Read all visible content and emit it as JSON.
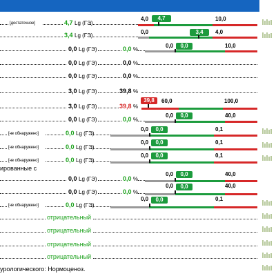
{
  "rows": [
    {
      "tag": "[достаточное]",
      "value": "4,7",
      "unit": "Lg (ГЭ)",
      "value_color": "#1aa01a",
      "scale": {
        "left": "4,0",
        "right": "10,0",
        "value_label": "4,7",
        "value_color": "green",
        "left_color": "#d62828",
        "right_color": "#1c9b3d",
        "mid_color": "#1c9b3d"
      },
      "hist": true
    },
    {
      "value": "3,4",
      "unit": "Lg (ГЭ)",
      "value_color": "#1aa01a",
      "scale": {
        "left": "0,0",
        "right": "4,0",
        "value_label": "3,4",
        "value_color": "green",
        "left_color": "#999999",
        "right_color": "#d62828",
        "mid_color": "#1c9b3d"
      },
      "hist": true
    },
    {
      "value": "0,0",
      "unit": "Lg (ГЭ)",
      "pct": "0,0",
      "pct_color": "#1aa01a",
      "scale": {
        "left": "0,0",
        "right": "10,0",
        "value_label": "0,0",
        "value_color": "green",
        "left_color": "#999999",
        "right_color": "#d62828",
        "mid_color": "#1c9b3d"
      }
    },
    {
      "value": "0,0",
      "unit": "Lg (ГЭ)",
      "pct": "0,0",
      "pct_color": "#000000"
    },
    {
      "value": "0,0",
      "unit": "Lg (ГЭ)",
      "pct": "0,0",
      "pct_color": "#000000"
    },
    {
      "value": "3,0",
      "unit": "Lg (ГЭ)",
      "pct": "39,8",
      "pct_color": "#000000"
    },
    {
      "value": "3,0",
      "unit": "Lg (ГЭ)",
      "pct": "39,8",
      "pct_color": "#d62828",
      "scale": {
        "left": "60,0",
        "right": "100,0",
        "value_label": "39,8",
        "value_color": "red",
        "left_color": "#d62828",
        "right_color": "#d62828",
        "mid_color": "#1c9b3d"
      }
    },
    {
      "value": "0,0",
      "unit": "Lg (ГЭ)",
      "pct": "0,0",
      "pct_color": "#1aa01a",
      "scale": {
        "left": "0,0",
        "right": "40,0",
        "value_label": "0,0",
        "value_color": "green",
        "left_color": "#999999",
        "right_color": "#d62828",
        "mid_color": "#1c9b3d"
      }
    },
    {
      "tag": "[не обнаружено]",
      "value": "0,0",
      "unit": "Lg (ГЭ)",
      "value_color": "#1aa01a",
      "scale": {
        "left": "0,0",
        "right": "0,1",
        "value_label": "0,0",
        "value_color": "green",
        "left_color": "#999999",
        "right_color": "#d62828",
        "mid_color": "#1c9b3d"
      },
      "hist": true
    },
    {
      "tag": "[не обнаружено]",
      "value": "0,0",
      "unit": "Lg (ГЭ)",
      "value_color": "#1aa01a",
      "scale": {
        "left": "0,0",
        "right": "0,1",
        "value_label": "0,0",
        "value_color": "green",
        "left_color": "#999999",
        "right_color": "#d62828",
        "mid_color": "#1c9b3d"
      },
      "hist": true
    },
    {
      "tag": "[не обнаружено]",
      "value": "0,0",
      "unit": "Lg (ГЭ)",
      "value_color": "#1aa01a",
      "scale": {
        "left": "0,0",
        "right": "0,1",
        "value_label": "0,0",
        "value_color": "green",
        "left_color": "#999999",
        "right_color": "#d62828",
        "mid_color": "#1c9b3d"
      },
      "hist": true
    },
    {
      "heading": "ированные с"
    },
    {
      "value": "0,0",
      "unit": "Lg (ГЭ)",
      "pct": "0,0",
      "pct_color": "#1aa01a",
      "scale": {
        "left": "0,0",
        "right": "40,0",
        "value_label": "0,0",
        "value_color": "green",
        "left_color": "#999999",
        "right_color": "#d62828",
        "mid_color": "#1c9b3d"
      }
    },
    {
      "value": "0,0",
      "unit": "Lg (ГЭ)",
      "pct": "0,0",
      "pct_color": "#1aa01a",
      "scale": {
        "left": "0,0",
        "right": "40,0",
        "value_label": "0,0",
        "value_color": "green",
        "left_color": "#999999",
        "right_color": "#d62828",
        "mid_color": "#1c9b3d"
      }
    },
    {
      "tag": "[не обнаружено]",
      "value": "0,0",
      "unit": "Lg (ГЭ)",
      "value_color": "#1aa01a",
      "scale": {
        "left": "0,0",
        "right": "0,1",
        "value_label": "0,0",
        "value_color": "green",
        "left_color": "#999999",
        "right_color": "#d62828",
        "mid_color": "#1c9b3d"
      },
      "hist": true
    },
    {
      "status": "отрицательный",
      "hist": true
    },
    {
      "status": "отрицательный",
      "hist": true
    },
    {
      "status": "отрицательный",
      "hist": true
    },
    {
      "status": "отрицательный",
      "hist": true
    },
    {
      "conclusion": "урологического: Нормоценоз.",
      "hist": true
    }
  ]
}
